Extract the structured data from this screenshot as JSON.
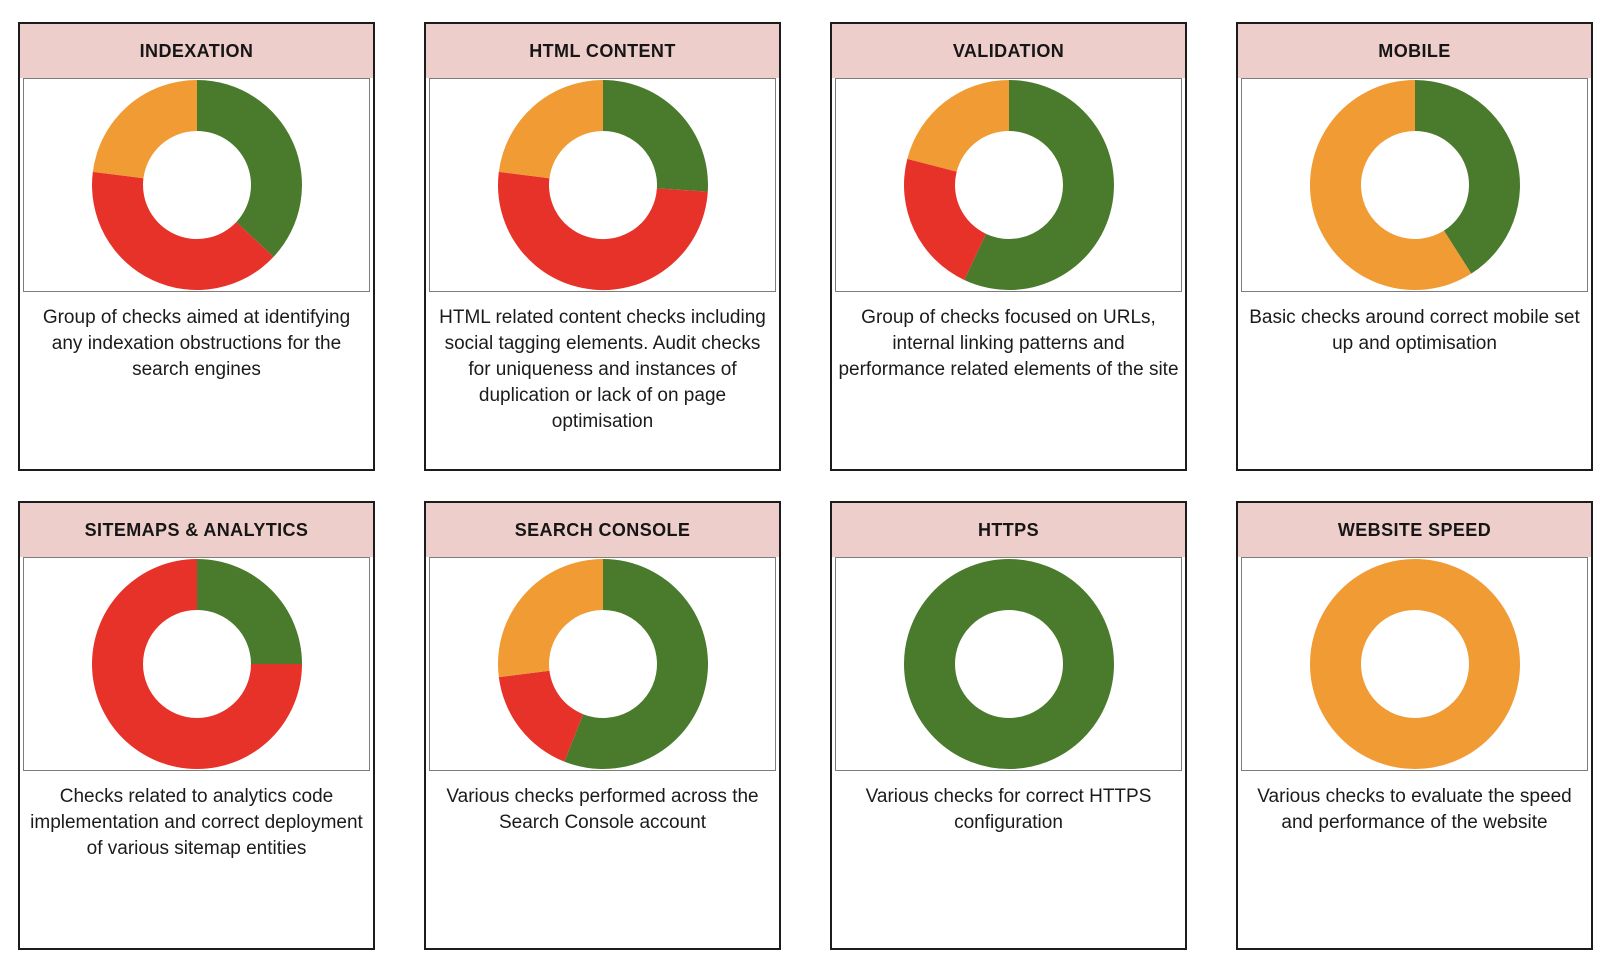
{
  "palette": {
    "green": "#4a7a2c",
    "red": "#e73229",
    "orange": "#f09b33",
    "header_bg": "#eececa",
    "card_border": "#1c1c1c",
    "panel_border": "#7d7d7d",
    "text": "#1b1b1b"
  },
  "cards": [
    {
      "title": "INDEXATION",
      "description": "Group of checks aimed at identifying any indexation obstructions for the search engines"
    },
    {
      "title": "HTML CONTENT",
      "description": "HTML related content checks including social tagging elements. Audit checks for uniqueness and instances of duplication or lack of on page optimisation"
    },
    {
      "title": "VALIDATION",
      "description": "Group of checks focused on URLs, internal linking patterns and performance related elements of the site"
    },
    {
      "title": "MOBILE",
      "description": "Basic checks around correct mobile set up and optimisation"
    },
    {
      "title": "SITEMAPS & ANALYTICS",
      "description": "Checks related to analytics code implementation and correct deployment of various sitemap entities"
    },
    {
      "title": "SEARCH CONSOLE",
      "description": "Various checks performed across the Search Console account"
    },
    {
      "title": "HTTPS",
      "description": "Various checks for correct HTTPS configuration"
    },
    {
      "title": "WEBSITE SPEED",
      "description": "Various checks to evaluate the speed and performance of the website"
    }
  ],
  "chart_data": [
    {
      "type": "pie",
      "donut": true,
      "title": "INDEXATION",
      "legend": false,
      "start_angle_deg": 0,
      "direction": "clockwise",
      "segments": [
        {
          "label": "green",
          "value": 37
        },
        {
          "label": "red",
          "value": 40
        },
        {
          "label": "orange",
          "value": 23
        }
      ]
    },
    {
      "type": "pie",
      "donut": true,
      "title": "HTML CONTENT",
      "legend": false,
      "start_angle_deg": 0,
      "direction": "clockwise",
      "segments": [
        {
          "label": "green",
          "value": 26
        },
        {
          "label": "red",
          "value": 51
        },
        {
          "label": "orange",
          "value": 23
        }
      ]
    },
    {
      "type": "pie",
      "donut": true,
      "title": "VALIDATION",
      "legend": false,
      "start_angle_deg": 0,
      "direction": "clockwise",
      "segments": [
        {
          "label": "green",
          "value": 57
        },
        {
          "label": "red",
          "value": 22
        },
        {
          "label": "orange",
          "value": 21
        }
      ]
    },
    {
      "type": "pie",
      "donut": true,
      "title": "MOBILE",
      "legend": false,
      "start_angle_deg": 0,
      "direction": "clockwise",
      "segments": [
        {
          "label": "green",
          "value": 41
        },
        {
          "label": "orange",
          "value": 59
        }
      ]
    },
    {
      "type": "pie",
      "donut": true,
      "title": "SITEMAPS & ANALYTICS",
      "legend": false,
      "start_angle_deg": 0,
      "direction": "clockwise",
      "segments": [
        {
          "label": "green",
          "value": 25
        },
        {
          "label": "red",
          "value": 75
        }
      ]
    },
    {
      "type": "pie",
      "donut": true,
      "title": "SEARCH CONSOLE",
      "legend": false,
      "start_angle_deg": 0,
      "direction": "clockwise",
      "segments": [
        {
          "label": "green",
          "value": 56
        },
        {
          "label": "red",
          "value": 17
        },
        {
          "label": "orange",
          "value": 27
        }
      ]
    },
    {
      "type": "pie",
      "donut": true,
      "title": "HTTPS",
      "legend": false,
      "start_angle_deg": 0,
      "direction": "clockwise",
      "segments": [
        {
          "label": "green",
          "value": 100
        }
      ]
    },
    {
      "type": "pie",
      "donut": true,
      "title": "WEBSITE SPEED",
      "legend": false,
      "start_angle_deg": 0,
      "direction": "clockwise",
      "segments": [
        {
          "label": "orange",
          "value": 100
        }
      ]
    }
  ]
}
